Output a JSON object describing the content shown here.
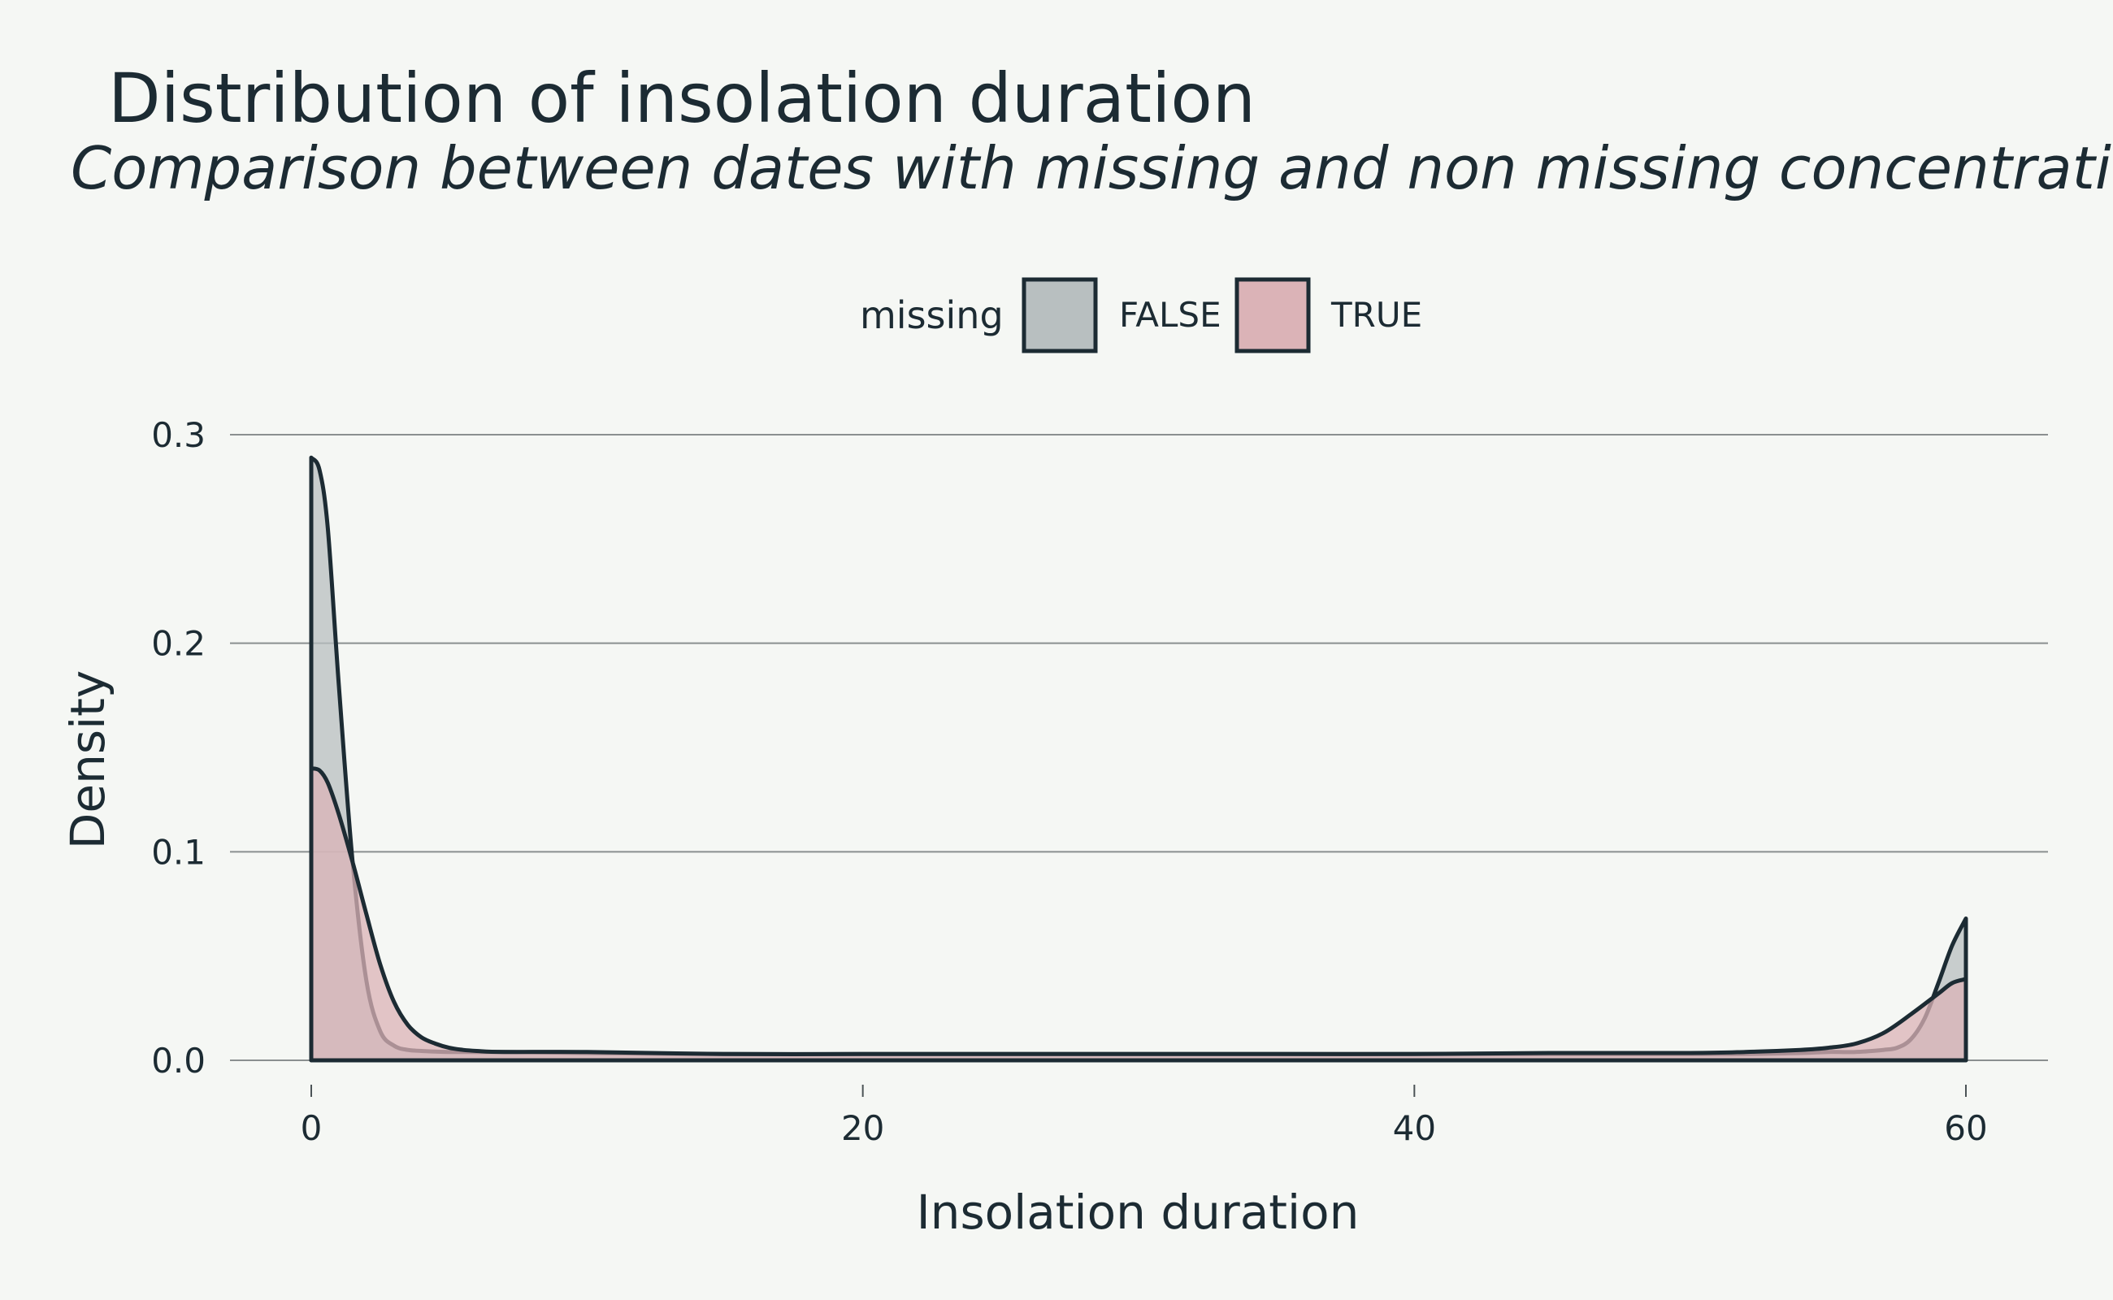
{
  "chart_data": {
    "type": "area",
    "title": "Distribution of insolation duration",
    "subtitle": "Comparison between dates with missing and non missing concentrations",
    "xlabel": "Insolation duration",
    "ylabel": "Density",
    "xlim": [
      -4,
      63
    ],
    "ylim": [
      0,
      0.3
    ],
    "x_ticks": [
      0,
      20,
      40,
      60
    ],
    "x_tick_labels": [
      "0",
      "20",
      "40",
      "60"
    ],
    "y_ticks": [
      0,
      0.1,
      0.2,
      0.3
    ],
    "y_tick_labels": [
      "0.0",
      "0.1",
      "0.2",
      "0.3"
    ],
    "grid": "horizontal",
    "legend": {
      "title": "missing",
      "position": "top",
      "entries": [
        "FALSE",
        "TRUE"
      ]
    },
    "series": [
      {
        "name": "FALSE",
        "color": "#b8bfc0",
        "x": [
          0,
          0.3,
          0.6,
          1.0,
          1.5,
          2.0,
          2.5,
          3.0,
          3.5,
          4.0,
          5.0,
          7.0,
          10,
          15,
          20,
          25,
          30,
          35,
          40,
          45,
          50,
          52,
          54,
          55,
          56,
          57,
          57.5,
          58,
          58.5,
          59,
          59.5,
          60
        ],
        "y": [
          0.289,
          0.283,
          0.255,
          0.18,
          0.095,
          0.038,
          0.014,
          0.007,
          0.005,
          0.0045,
          0.004,
          0.004,
          0.0035,
          0.003,
          0.003,
          0.003,
          0.003,
          0.003,
          0.003,
          0.003,
          0.003,
          0.003,
          0.0035,
          0.004,
          0.004,
          0.005,
          0.006,
          0.01,
          0.02,
          0.037,
          0.055,
          0.068
        ]
      },
      {
        "name": "TRUE",
        "color": "#dbb3b7",
        "x": [
          0,
          0.3,
          0.6,
          1.0,
          1.5,
          2.0,
          2.5,
          3.0,
          3.5,
          4.0,
          4.5,
          5.0,
          5.5,
          6.0,
          7.0,
          10,
          15,
          20,
          25,
          30,
          35,
          40,
          45,
          50,
          52,
          54,
          55,
          56,
          57,
          58,
          59,
          59.5,
          60
        ],
        "y": [
          0.14,
          0.139,
          0.133,
          0.118,
          0.095,
          0.07,
          0.046,
          0.028,
          0.017,
          0.011,
          0.008,
          0.006,
          0.005,
          0.0045,
          0.004,
          0.004,
          0.003,
          0.003,
          0.003,
          0.003,
          0.003,
          0.003,
          0.0035,
          0.0035,
          0.004,
          0.005,
          0.006,
          0.008,
          0.013,
          0.022,
          0.032,
          0.037,
          0.039
        ]
      }
    ]
  }
}
